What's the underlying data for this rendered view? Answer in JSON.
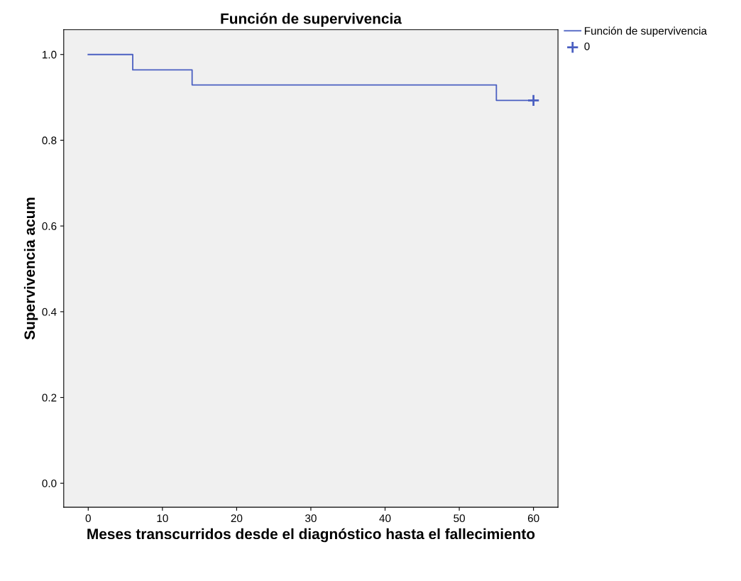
{
  "chart_data": {
    "type": "step",
    "title": "Función de supervivencia",
    "xlabel": "Meses transcurridos desde el diagnóstico hasta el fallecimiento",
    "ylabel": "Supervivencia acum",
    "series": [
      {
        "name": "Función de supervivencia",
        "color": "#4a5fc1",
        "x": [
          0,
          6,
          14,
          55,
          60
        ],
        "values": [
          1.0,
          0.964,
          0.929,
          0.893,
          0.893
        ],
        "marker": "none"
      },
      {
        "name": "0",
        "type": "scatter",
        "color": "#4a5fc1",
        "x": [
          60
        ],
        "values": [
          0.893
        ],
        "marker": "cross"
      }
    ],
    "xlim": [
      -3.3,
      63.3
    ],
    "ylim": [
      -0.056,
      1.058
    ],
    "xticks": [
      0,
      10,
      20,
      30,
      40,
      50,
      60
    ],
    "yticks": [
      {
        "value": 0.0,
        "label": "0.0"
      },
      {
        "value": 0.2,
        "label": "0.2"
      },
      {
        "value": 0.4,
        "label": "0.4"
      },
      {
        "value": 0.6,
        "label": "0.6"
      },
      {
        "value": 0.8,
        "label": "0.8"
      },
      {
        "value": 1.0,
        "label": "1.0"
      }
    ],
    "grid": false,
    "legend": "top right"
  }
}
